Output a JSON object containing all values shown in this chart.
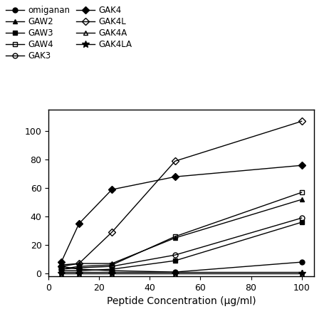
{
  "x": [
    5,
    12,
    25,
    50,
    100
  ],
  "series_order": [
    "omiganan",
    "GAW2",
    "GAW3",
    "GAW4",
    "GAK3",
    "GAK4",
    "GAK4L",
    "GAK4A",
    "GAK4LA"
  ],
  "series": {
    "omiganan": {
      "y": [
        5,
        3,
        2,
        1,
        8
      ],
      "marker": "o",
      "fillstyle": "full",
      "markersize": 5
    },
    "GAW2": {
      "y": [
        6,
        7,
        7,
        25,
        52
      ],
      "marker": "^",
      "fillstyle": "full",
      "markersize": 5
    },
    "GAW3": {
      "y": [
        2,
        2,
        3,
        9,
        36
      ],
      "marker": "s",
      "fillstyle": "full",
      "markersize": 5
    },
    "GAW4": {
      "y": [
        3,
        5,
        6,
        26,
        57
      ],
      "marker": "s",
      "fillstyle": "none",
      "markersize": 5
    },
    "GAK3": {
      "y": [
        3,
        4,
        5,
        13,
        39
      ],
      "marker": "o",
      "fillstyle": "none",
      "markersize": 5
    },
    "GAK4": {
      "y": [
        8,
        35,
        59,
        68,
        76
      ],
      "marker": "D",
      "fillstyle": "full",
      "markersize": 5
    },
    "GAK4L": {
      "y": [
        5,
        7,
        29,
        79,
        107
      ],
      "marker": "D",
      "fillstyle": "none",
      "markersize": 5
    },
    "GAK4A": {
      "y": [
        1,
        1,
        1,
        1,
        1
      ],
      "marker": "^",
      "fillstyle": "none",
      "markersize": 5
    },
    "GAK4LA": {
      "y": [
        0,
        0,
        0,
        0,
        0
      ],
      "marker": "*",
      "fillstyle": "full",
      "markersize": 7
    }
  },
  "xlabel": "Peptide Concentration (μg/ml)",
  "xlim": [
    0,
    105
  ],
  "ylim": [
    -2,
    115
  ],
  "xticks": [
    0,
    20,
    40,
    60,
    80,
    100
  ],
  "yticks": [
    0,
    20,
    40,
    60,
    80,
    100
  ],
  "linewidth": 1.0,
  "legend_ncol": 2,
  "legend_fontsize": 8.5,
  "xlabel_fontsize": 10,
  "tick_labelsize": 9,
  "background_color": "#ffffff"
}
